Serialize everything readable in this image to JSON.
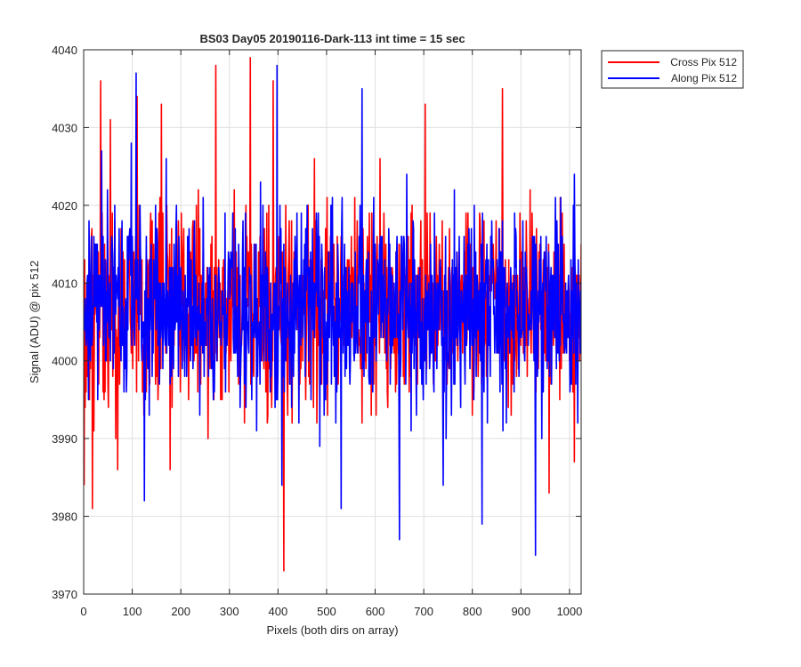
{
  "chart_data": {
    "type": "line",
    "title": "BS03 Day05 20190116-Dark-113 int time = 15 sec",
    "xlabel": "Pixels (both dirs on array)",
    "ylabel": "Signal (ADU) @ pix 512",
    "xlim": [
      0,
      1024
    ],
    "ylim": [
      3970,
      4040
    ],
    "xticks": [
      0,
      100,
      200,
      300,
      400,
      500,
      600,
      700,
      800,
      900,
      1000
    ],
    "yticks": [
      3970,
      3980,
      3990,
      4000,
      4010,
      4020,
      4030,
      4040
    ],
    "grid": true,
    "legend_position": "outside-top-right",
    "series": [
      {
        "name": "Cross Pix 512",
        "color": "#ff0000",
        "x_start": 1,
        "x_step": 1,
        "summary": {
          "count": 1024,
          "mean": 4007,
          "min": 3973,
          "max": 4039
        },
        "notable_points": [
          {
            "x": 1,
            "y": 3984
          },
          {
            "x": 18,
            "y": 3981
          },
          {
            "x": 35,
            "y": 4036
          },
          {
            "x": 55,
            "y": 4031
          },
          {
            "x": 70,
            "y": 3986
          },
          {
            "x": 110,
            "y": 4034
          },
          {
            "x": 160,
            "y": 4033
          },
          {
            "x": 178,
            "y": 3986
          },
          {
            "x": 272,
            "y": 4038
          },
          {
            "x": 343,
            "y": 4039
          },
          {
            "x": 390,
            "y": 4036
          },
          {
            "x": 412,
            "y": 3973
          },
          {
            "x": 475,
            "y": 4026
          },
          {
            "x": 610,
            "y": 4026
          },
          {
            "x": 703,
            "y": 4033
          },
          {
            "x": 862,
            "y": 4035
          },
          {
            "x": 958,
            "y": 3983
          },
          {
            "x": 1010,
            "y": 3987
          }
        ]
      },
      {
        "name": "Along Pix 512",
        "color": "#0000ff",
        "x_start": 1,
        "x_step": 1,
        "summary": {
          "count": 1024,
          "mean": 4007,
          "min": 3975,
          "max": 4038
        },
        "notable_points": [
          {
            "x": 37,
            "y": 4027
          },
          {
            "x": 108,
            "y": 4037
          },
          {
            "x": 125,
            "y": 3982
          },
          {
            "x": 398,
            "y": 4038
          },
          {
            "x": 408,
            "y": 3984
          },
          {
            "x": 530,
            "y": 3981
          },
          {
            "x": 573,
            "y": 4035
          },
          {
            "x": 650,
            "y": 3977
          },
          {
            "x": 740,
            "y": 3984
          },
          {
            "x": 820,
            "y": 3979
          },
          {
            "x": 930,
            "y": 3975
          },
          {
            "x": 1010,
            "y": 4024
          }
        ]
      }
    ]
  }
}
